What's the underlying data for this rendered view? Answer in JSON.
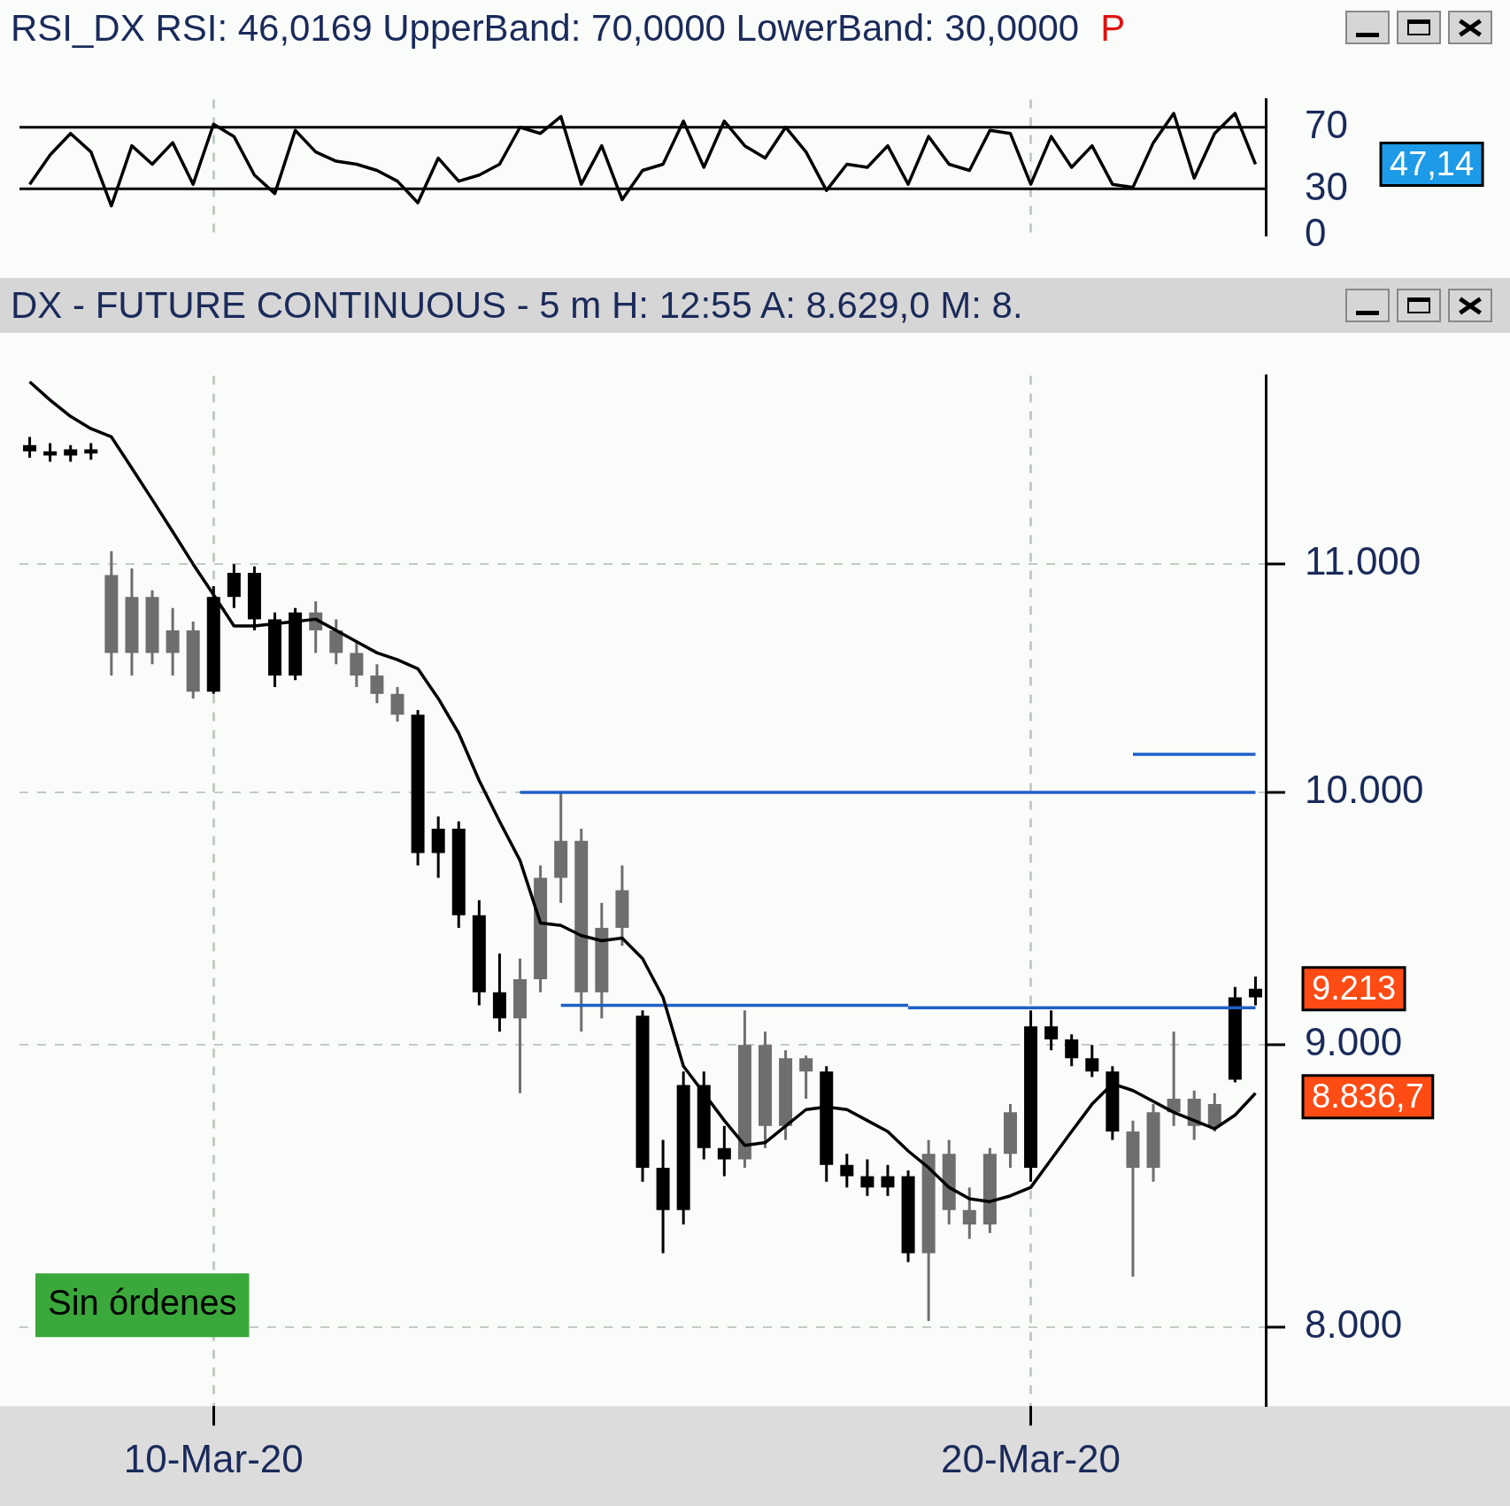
{
  "chart_data": [
    {
      "type": "line",
      "title": "RSI_DX RSI: 46,0169 UpperBand: 70,0000 LowerBand: 30,0000",
      "subtitle": "P",
      "categories": [
        null,
        null,
        null,
        null,
        null,
        null,
        null,
        null,
        null,
        null,
        null,
        null,
        null,
        null,
        null,
        null,
        null,
        null,
        null,
        null,
        null,
        null,
        null,
        null,
        null,
        null,
        null,
        null,
        null,
        null,
        null,
        null,
        null,
        null,
        null,
        null,
        null,
        null,
        null,
        null,
        null,
        null,
        null,
        null,
        null,
        null,
        null,
        null,
        null,
        null,
        null,
        null,
        null,
        null,
        null,
        null,
        null,
        null,
        null,
        null,
        null
      ],
      "series": [
        {
          "type": "line",
          "color": "#000000",
          "values": [
            33,
            52,
            66,
            54,
            19,
            58,
            46,
            60,
            33,
            72,
            64,
            39,
            27,
            68,
            54,
            48,
            46,
            42,
            35,
            21,
            50,
            35,
            39,
            46,
            70,
            66,
            77,
            33,
            58,
            23,
            42,
            46,
            74,
            44,
            74,
            58,
            50,
            70,
            54,
            29,
            46,
            44,
            58,
            33,
            64,
            46,
            42,
            68,
            66,
            33,
            64,
            44,
            58,
            33,
            31,
            60,
            79,
            37,
            66,
            79,
            46
          ]
        }
      ],
      "ylim": [
        0,
        88
      ],
      "yticks": [
        0,
        30,
        70
      ],
      "grid": "x",
      "tick_labels": "y",
      "ref_lines": [
        {
          "axis": "y",
          "value": 70,
          "color": "#000000"
        },
        {
          "axis": "y",
          "value": 30,
          "color": "#000000"
        }
      ],
      "annotations": [
        "47,14"
      ]
    },
    {
      "type": "candlestick",
      "title": "DX - FUTURE CONTINUOUS -  5 m  H: 12:55  A: 8.629,0  M: 8.",
      "categories": [
        null,
        null,
        null,
        null,
        null,
        null,
        null,
        null,
        null,
        "10-Mar-20",
        null,
        null,
        null,
        null,
        null,
        null,
        null,
        null,
        null,
        null,
        null,
        null,
        null,
        null,
        null,
        null,
        null,
        null,
        null,
        null,
        null,
        null,
        null,
        null,
        null,
        null,
        null,
        null,
        null,
        null,
        null,
        null,
        null,
        null,
        null,
        null,
        null,
        null,
        null,
        "20-Mar-20",
        null,
        null,
        null,
        null,
        null,
        null,
        null,
        null,
        null,
        null,
        null
      ],
      "series": [
        {
          "type": "candlestick",
          "ohlc": [
            [
              11560,
              11600,
              11500,
              11530
            ],
            [
              11530,
              11570,
              11480,
              11510
            ],
            [
              11510,
              11560,
              11480,
              11540
            ],
            [
              11540,
              11570,
              11490,
              11520
            ],
            [
              10950,
              11060,
              10500,
              10600
            ],
            [
              10600,
              10980,
              10500,
              10850
            ],
            [
              10850,
              10880,
              10550,
              10600
            ],
            [
              10600,
              10800,
              10500,
              10700
            ],
            [
              10700,
              10740,
              10400,
              10430
            ],
            [
              10430,
              10900,
              10420,
              10850
            ],
            [
              10850,
              11000,
              10800,
              10960
            ],
            [
              10960,
              10990,
              10700,
              10750
            ],
            [
              10750,
              10780,
              10450,
              10500
            ],
            [
              10500,
              10800,
              10480,
              10780
            ],
            [
              10780,
              10830,
              10600,
              10700
            ],
            [
              10700,
              10750,
              10550,
              10600
            ],
            [
              10600,
              10650,
              10450,
              10500
            ],
            [
              10500,
              10550,
              10380,
              10420
            ],
            [
              10420,
              10450,
              10300,
              10330
            ],
            [
              10330,
              10350,
              9700,
              9750
            ],
            [
              9750,
              9900,
              9650,
              9850
            ],
            [
              9850,
              9880,
              9450,
              9500
            ],
            [
              9500,
              9560,
              9150,
              9200
            ],
            [
              9200,
              9350,
              9050,
              9100
            ],
            [
              9100,
              9330,
              8820,
              9250
            ],
            [
              9250,
              9700,
              9200,
              9650
            ],
            [
              9650,
              10000,
              9550,
              9800
            ],
            [
              9800,
              9850,
              9050,
              9200
            ],
            [
              9200,
              9550,
              9100,
              9450
            ],
            [
              9450,
              9700,
              9380,
              9600
            ],
            [
              9110,
              9130,
              8500,
              8550
            ],
            [
              8550,
              8650,
              8250,
              8400
            ],
            [
              8400,
              8900,
              8350,
              8850
            ],
            [
              8850,
              8900,
              8580,
              8620
            ],
            [
              8620,
              8700,
              8520,
              8580
            ],
            [
              8580,
              9130,
              8550,
              9000
            ],
            [
              9000,
              9050,
              8620,
              8700
            ],
            [
              8700,
              8980,
              8650,
              8950
            ],
            [
              8950,
              8960,
              8800,
              8900
            ],
            [
              8900,
              8920,
              8500,
              8560
            ],
            [
              8560,
              8600,
              8480,
              8520
            ],
            [
              8520,
              8580,
              8450,
              8480
            ],
            [
              8480,
              8560,
              8450,
              8520
            ],
            [
              8520,
              8540,
              8220,
              8250
            ],
            [
              8250,
              8650,
              8020,
              8600
            ],
            [
              8600,
              8650,
              8350,
              8400
            ],
            [
              8400,
              8480,
              8300,
              8350
            ],
            [
              8350,
              8620,
              8320,
              8600
            ],
            [
              8600,
              8780,
              8550,
              8750
            ],
            [
              8550,
              9130,
              8500,
              9070
            ],
            [
              9070,
              9130,
              8980,
              9020
            ],
            [
              9020,
              9040,
              8920,
              8950
            ],
            [
              8950,
              9000,
              8880,
              8900
            ],
            [
              8900,
              8920,
              8650,
              8680
            ],
            [
              8680,
              8720,
              8170,
              8550
            ],
            [
              8550,
              8780,
              8500,
              8750
            ],
            [
              8750,
              9050,
              8700,
              8800
            ],
            [
              8800,
              8830,
              8650,
              8700
            ],
            [
              8700,
              8820,
              8680,
              8780
            ],
            [
              8870,
              9220,
              8860,
              9180
            ],
            [
              9180,
              9260,
              9150,
              9213
            ]
          ],
          "colors": [
            "#000000",
            "#000000",
            "#000000",
            "#000000",
            "#6e6e6e",
            "#6e6e6e",
            "#6e6e6e",
            "#6e6e6e",
            "#6e6e6e",
            "#000000",
            "#000000",
            "#000000",
            "#000000",
            "#000000",
            "#6e6e6e",
            "#6e6e6e",
            "#6e6e6e",
            "#6e6e6e",
            "#6e6e6e",
            "#000000",
            "#000000",
            "#000000",
            "#000000",
            "#000000",
            "#6e6e6e",
            "#6e6e6e",
            "#6e6e6e",
            "#6e6e6e",
            "#6e6e6e",
            "#6e6e6e",
            "#000000",
            "#000000",
            "#000000",
            "#000000",
            "#000000",
            "#6e6e6e",
            "#6e6e6e",
            "#6e6e6e",
            "#6e6e6e",
            "#000000",
            "#000000",
            "#000000",
            "#000000",
            "#000000",
            "#6e6e6e",
            "#6e6e6e",
            "#6e6e6e",
            "#6e6e6e",
            "#6e6e6e",
            "#000000",
            "#000000",
            "#000000",
            "#000000",
            "#000000",
            "#6e6e6e",
            "#6e6e6e",
            "#6e6e6e",
            "#6e6e6e",
            "#6e6e6e",
            "#000000",
            "#000000"
          ]
        },
        {
          "type": "line",
          "color": "#000000",
          "values": [
            11870,
            11780,
            11700,
            11640,
            11600,
            11450,
            11300,
            11150,
            11000,
            10860,
            10720,
            10720,
            10730,
            10740,
            10750,
            10700,
            10650,
            10600,
            10570,
            10530,
            10400,
            10250,
            10050,
            9880,
            9720,
            9470,
            9460,
            9420,
            9400,
            9410,
            9330,
            9180,
            8920,
            8820,
            8720,
            8630,
            8640,
            8700,
            8760,
            8770,
            8760,
            8720,
            8680,
            8610,
            8550,
            8480,
            8440,
            8430,
            8450,
            8480,
            8580,
            8680,
            8780,
            8855,
            8830,
            8790,
            8750,
            8720,
            8690,
            8740,
            8820
          ]
        },
        {
          "type": "line",
          "color": "#1f5fc8",
          "values": [
            null,
            null,
            null,
            null,
            null,
            null,
            null,
            null,
            null,
            null,
            null,
            null,
            null,
            null,
            null,
            null,
            null,
            null,
            null,
            null,
            null,
            null,
            null,
            null,
            10000,
            10000,
            10000,
            10000,
            10000,
            10000,
            10000,
            10000,
            10000,
            10000,
            10000,
            10000,
            10000,
            10000,
            10000,
            10000,
            10000,
            10000,
            10000,
            10000,
            10000,
            10000,
            10000,
            10000,
            10000,
            10000,
            10000,
            10000,
            10000,
            10000,
            10000,
            10000,
            10000,
            10000,
            10000,
            10000,
            10000
          ]
        },
        {
          "type": "line",
          "color": "#1f5fc8",
          "values": [
            null,
            null,
            null,
            null,
            null,
            null,
            null,
            null,
            null,
            null,
            null,
            null,
            null,
            null,
            null,
            null,
            null,
            null,
            null,
            null,
            null,
            null,
            null,
            null,
            null,
            null,
            9150,
            9150,
            9150,
            9150,
            9150,
            9150,
            9150,
            9150,
            9150,
            9150,
            9150,
            9150,
            9150,
            9150,
            9150,
            9150,
            9150,
            9150,
            null,
            null,
            null,
            null,
            null,
            null,
            null,
            null,
            null,
            null,
            null,
            null,
            null,
            null,
            null,
            null,
            null
          ]
        },
        {
          "type": "line",
          "color": "#1f5fc8",
          "values": [
            null,
            null,
            null,
            null,
            null,
            null,
            null,
            null,
            null,
            null,
            null,
            null,
            null,
            null,
            null,
            null,
            null,
            null,
            null,
            null,
            null,
            null,
            null,
            null,
            null,
            null,
            null,
            null,
            null,
            null,
            null,
            null,
            null,
            null,
            null,
            null,
            null,
            null,
            null,
            null,
            null,
            null,
            null,
            9140,
            9140,
            9140,
            9140,
            9140,
            9140,
            9140,
            9140,
            9140,
            9140,
            9140,
            9140,
            9140,
            9140,
            9140,
            9140,
            9140,
            9140
          ]
        },
        {
          "type": "line",
          "color": "#1f5fc8",
          "values": [
            null,
            null,
            null,
            null,
            null,
            null,
            null,
            null,
            null,
            null,
            null,
            null,
            null,
            null,
            null,
            null,
            null,
            null,
            null,
            null,
            null,
            null,
            null,
            null,
            null,
            null,
            null,
            null,
            null,
            null,
            null,
            null,
            null,
            null,
            null,
            null,
            null,
            null,
            null,
            null,
            null,
            null,
            null,
            null,
            null,
            null,
            null,
            null,
            null,
            null,
            null,
            null,
            null,
            null,
            10160,
            10160,
            10160,
            10160,
            10160,
            10160,
            10160
          ]
        }
      ],
      "log": "y",
      "ylim": [
        7740,
        11900
      ],
      "yticks": [
        {
          "value": 8000,
          "label": "8.000"
        },
        {
          "value": 9000,
          "label": "9.000"
        },
        {
          "value": 10000,
          "label": "10.000"
        },
        {
          "value": 11000,
          "label": "11.000"
        }
      ],
      "grid": true,
      "annotations": [
        "Sin órdenes",
        "9.213",
        "8.836,7"
      ]
    }
  ]
}
